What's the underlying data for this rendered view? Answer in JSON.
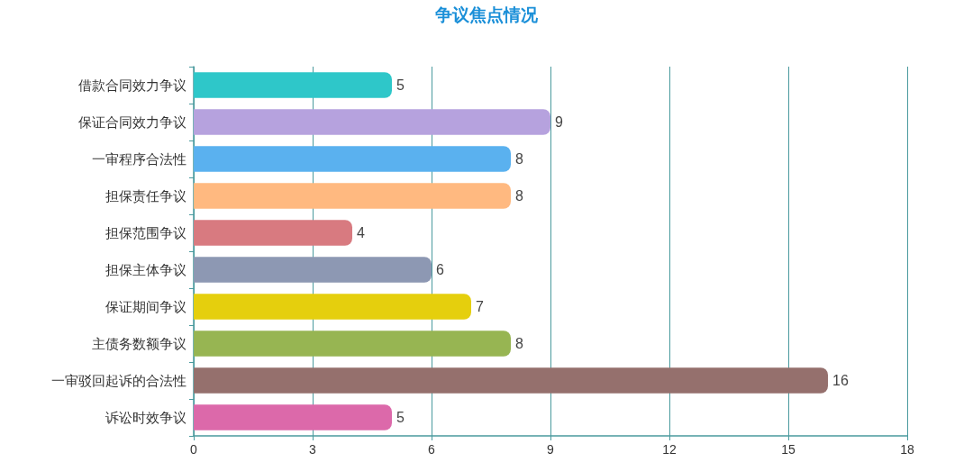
{
  "chart_data": {
    "type": "bar",
    "orientation": "horizontal",
    "title": "争议焦点情况",
    "categories": [
      "借款合同效力争议",
      "保证合同效力争议",
      "一审程序合法性",
      "担保责任争议",
      "担保范围争议",
      "担保主体争议",
      "保证期间争议",
      "主债务数额争议",
      "一审驳回起诉的合法性",
      "诉讼时效争议"
    ],
    "values": [
      5,
      9,
      8,
      8,
      4,
      6,
      7,
      8,
      16,
      5
    ],
    "colors": [
      "#2ec7c9",
      "#b6a2de",
      "#5ab1ef",
      "#ffb980",
      "#d87a80",
      "#8d98b3",
      "#e5cf0d",
      "#97b552",
      "#95706d",
      "#dc69aa"
    ],
    "xlim": [
      0,
      18
    ],
    "xticks": [
      0,
      3,
      6,
      9,
      12,
      15,
      18
    ],
    "grid": "x",
    "data_labels": true
  }
}
